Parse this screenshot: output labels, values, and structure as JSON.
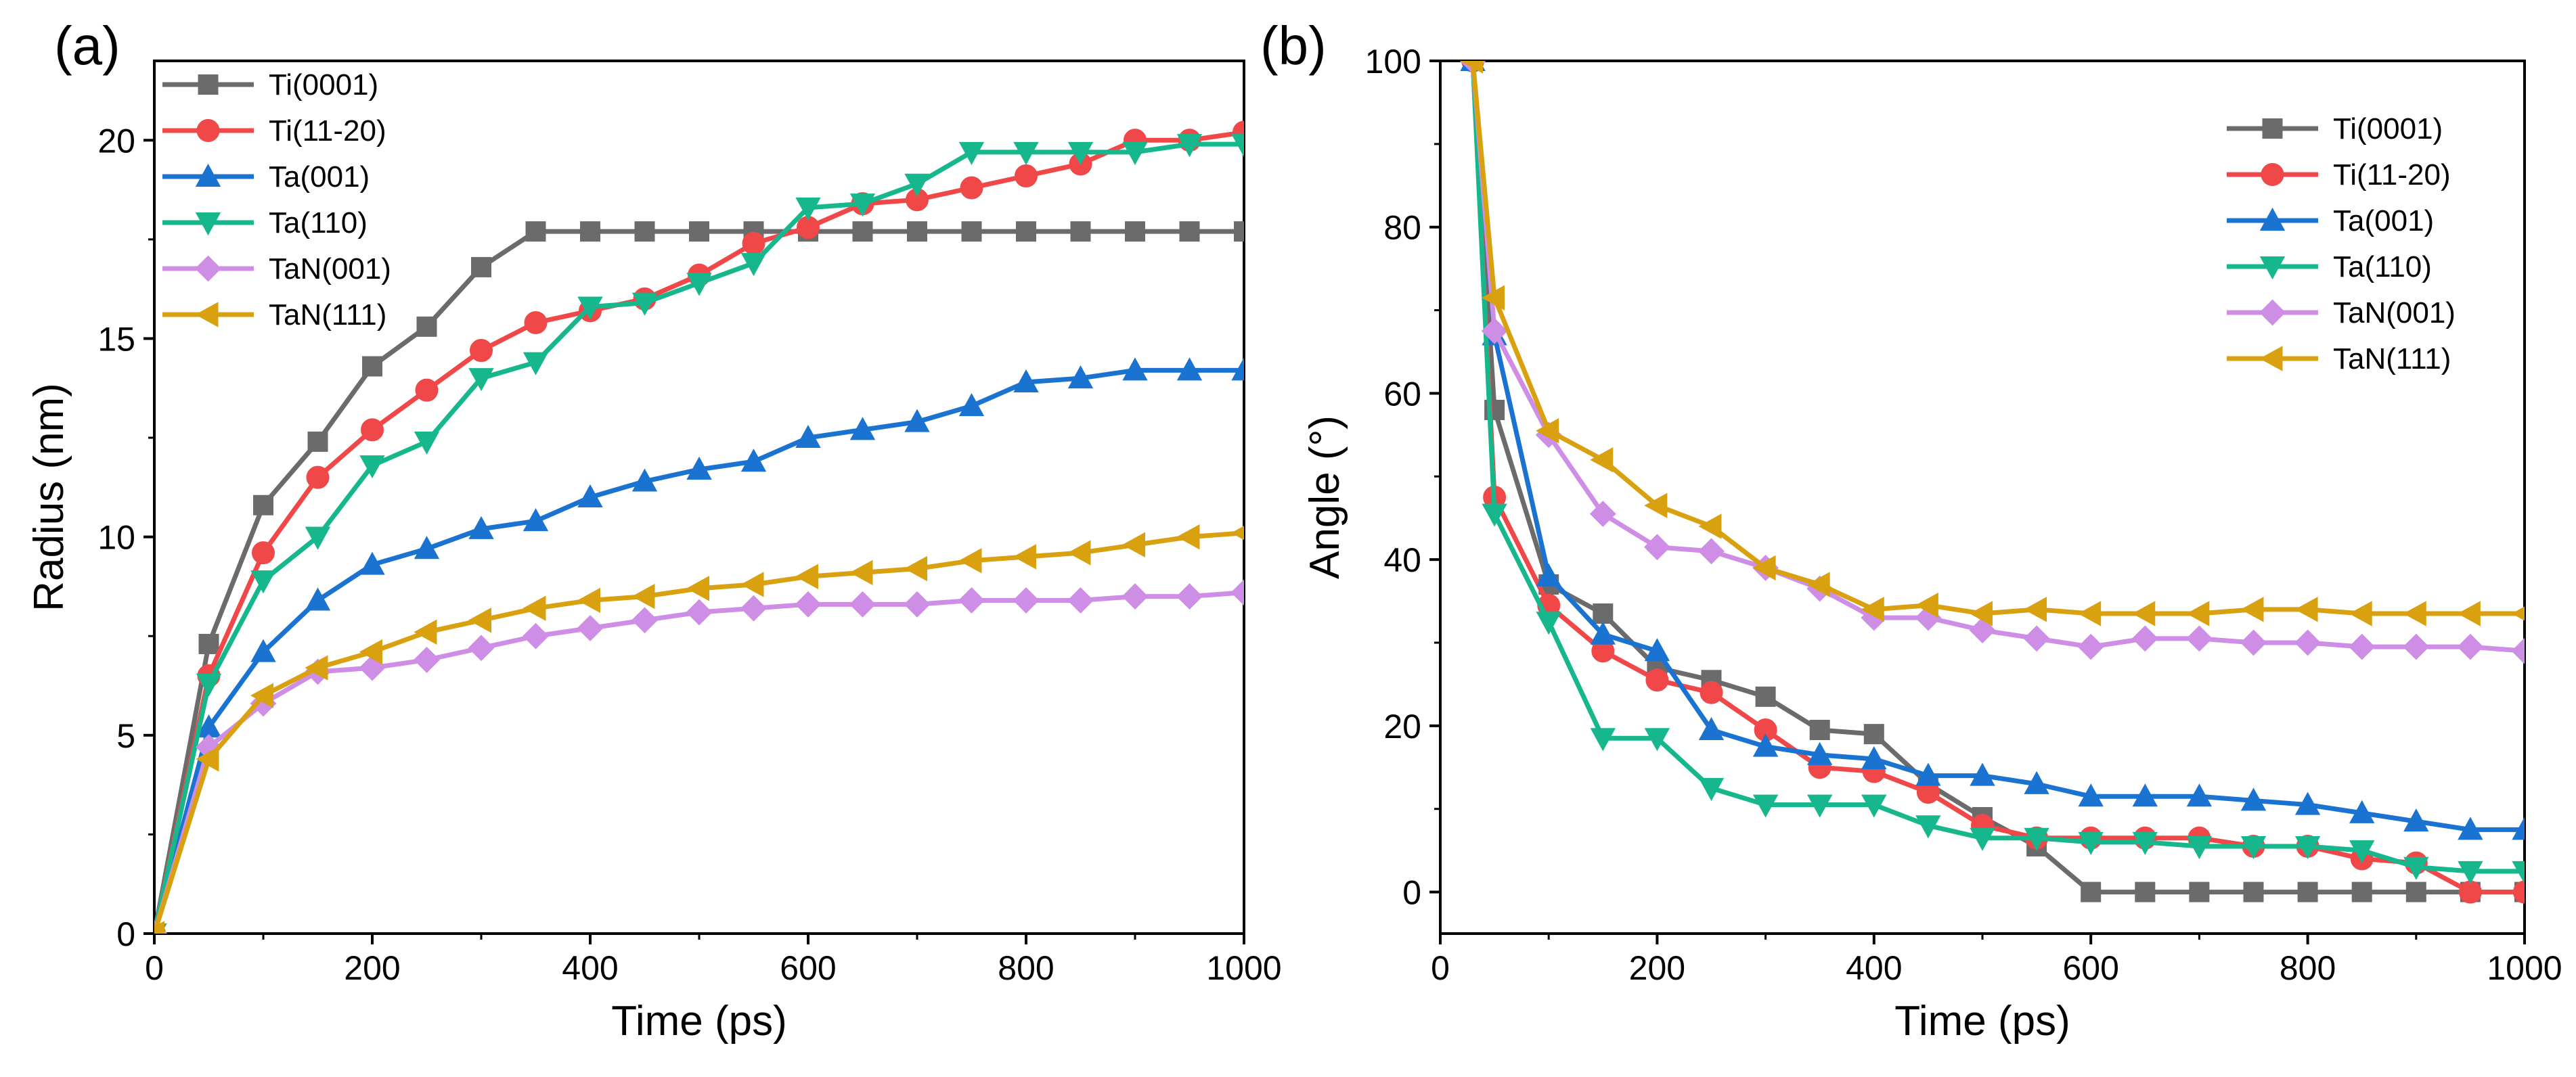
{
  "chart_data": [
    {
      "panel": "(a)",
      "type": "line",
      "title": "",
      "xlabel": "Time (ps)",
      "ylabel": "Radius (nm)",
      "xlim": [
        0,
        1000
      ],
      "ylim": [
        0,
        22
      ],
      "xticks": [
        0,
        200,
        400,
        600,
        800,
        1000
      ],
      "yticks": [
        0,
        5,
        10,
        15,
        20
      ],
      "legend_position": "top-left",
      "x": [
        0,
        50,
        100,
        150,
        200,
        250,
        300,
        350,
        400,
        450,
        500,
        550,
        600,
        650,
        700,
        750,
        800,
        850,
        900,
        950,
        1000
      ],
      "series": [
        {
          "name": "Ti(0001)",
          "color": "#6b6b6b",
          "marker": "square",
          "values": [
            0,
            7.3,
            10.8,
            12.4,
            14.3,
            15.3,
            16.8,
            17.7,
            17.7,
            17.7,
            17.7,
            17.7,
            17.7,
            17.7,
            17.7,
            17.7,
            17.7,
            17.7,
            17.7,
            17.7,
            17.7
          ]
        },
        {
          "name": "Ti(11-20)",
          "color": "#f04848",
          "marker": "circle",
          "values": [
            0,
            6.5,
            9.6,
            11.5,
            12.7,
            13.7,
            14.7,
            15.4,
            15.7,
            16.0,
            16.6,
            17.4,
            17.8,
            18.4,
            18.5,
            18.8,
            19.1,
            19.4,
            20.0,
            20.0,
            20.2
          ]
        },
        {
          "name": "Ta(001)",
          "color": "#1a73d1",
          "marker": "triangle-up",
          "values": [
            0,
            5.2,
            7.1,
            8.4,
            9.3,
            9.7,
            10.2,
            10.4,
            11.0,
            11.4,
            11.7,
            11.9,
            12.5,
            12.7,
            12.9,
            13.3,
            13.9,
            14.0,
            14.2,
            14.2,
            14.2
          ]
        },
        {
          "name": "Ta(110)",
          "color": "#17b78e",
          "marker": "triangle-down",
          "values": [
            0,
            6.3,
            8.9,
            10.0,
            11.8,
            12.4,
            14.0,
            14.4,
            15.8,
            15.9,
            16.4,
            16.9,
            18.3,
            18.4,
            18.9,
            19.7,
            19.7,
            19.7,
            19.7,
            19.9,
            19.9
          ]
        },
        {
          "name": "TaN(001)",
          "color": "#cf8ee6",
          "marker": "diamond",
          "values": [
            0,
            4.7,
            5.8,
            6.6,
            6.7,
            6.9,
            7.2,
            7.5,
            7.7,
            7.9,
            8.1,
            8.2,
            8.3,
            8.3,
            8.3,
            8.4,
            8.4,
            8.4,
            8.5,
            8.5,
            8.6
          ]
        },
        {
          "name": "TaN(111)",
          "color": "#d9a010",
          "marker": "triangle-left",
          "values": [
            0,
            4.4,
            6.0,
            6.7,
            7.1,
            7.6,
            7.9,
            8.2,
            8.4,
            8.5,
            8.7,
            8.8,
            9.0,
            9.1,
            9.2,
            9.4,
            9.5,
            9.6,
            9.8,
            10.0,
            10.1
          ]
        }
      ]
    },
    {
      "panel": "(b)",
      "type": "line",
      "title": "",
      "xlabel": "Time (ps)",
      "ylabel": "Angle (°)",
      "xlim": [
        0,
        1000
      ],
      "ylim": [
        -5,
        100
      ],
      "xticks": [
        0,
        200,
        400,
        600,
        800,
        1000
      ],
      "yticks": [
        0,
        20,
        40,
        60,
        80,
        100
      ],
      "legend_position": "top-right",
      "x": [
        30,
        50,
        100,
        150,
        200,
        250,
        300,
        350,
        400,
        450,
        500,
        550,
        600,
        650,
        700,
        750,
        800,
        850,
        900,
        950,
        1000
      ],
      "series": [
        {
          "name": "Ti(0001)",
          "color": "#6b6b6b",
          "marker": "square",
          "values": [
            100,
            58,
            37,
            33.5,
            27,
            25.5,
            23.5,
            19.5,
            19,
            13,
            9,
            5.5,
            0,
            0,
            0,
            0,
            0,
            0,
            0,
            0,
            0
          ]
        },
        {
          "name": "Ti(11-20)",
          "color": "#f04848",
          "marker": "circle",
          "values": [
            100,
            47.5,
            34.5,
            29,
            25.5,
            24,
            19.5,
            15,
            14.5,
            12,
            8,
            6.5,
            6.5,
            6.5,
            6.5,
            5.5,
            5.5,
            4,
            3.5,
            0,
            0
          ]
        },
        {
          "name": "Ta(001)",
          "color": "#1a73d1",
          "marker": "triangle-up",
          "values": [
            100,
            67,
            38,
            31,
            29,
            19.5,
            17.5,
            16.5,
            16,
            14,
            14,
            13,
            11.5,
            11.5,
            11.5,
            11,
            10.5,
            9.5,
            8.5,
            7.5,
            7.5
          ]
        },
        {
          "name": "Ta(110)",
          "color": "#17b78e",
          "marker": "triangle-down",
          "values": [
            100,
            45.5,
            32.5,
            18.5,
            18.5,
            12.5,
            10.5,
            10.5,
            10.5,
            8,
            6.5,
            6.5,
            6,
            6,
            5.5,
            5.5,
            5.5,
            5,
            3,
            2.5,
            2.5
          ]
        },
        {
          "name": "TaN(001)",
          "color": "#cf8ee6",
          "marker": "diamond",
          "values": [
            100,
            67.5,
            55,
            45.5,
            41.5,
            41,
            39,
            36.5,
            33,
            33,
            31.5,
            30.5,
            29.5,
            30.5,
            30.5,
            30,
            30,
            29.5,
            29.5,
            29.5,
            29
          ]
        },
        {
          "name": "TaN(111)",
          "color": "#d9a010",
          "marker": "triangle-left",
          "values": [
            100,
            71.5,
            55.5,
            52,
            46.5,
            44,
            39,
            37,
            34,
            34.5,
            33.5,
            34,
            33.5,
            33.5,
            33.5,
            34,
            34,
            33.5,
            33.5,
            33.5,
            33.5
          ]
        }
      ]
    }
  ]
}
